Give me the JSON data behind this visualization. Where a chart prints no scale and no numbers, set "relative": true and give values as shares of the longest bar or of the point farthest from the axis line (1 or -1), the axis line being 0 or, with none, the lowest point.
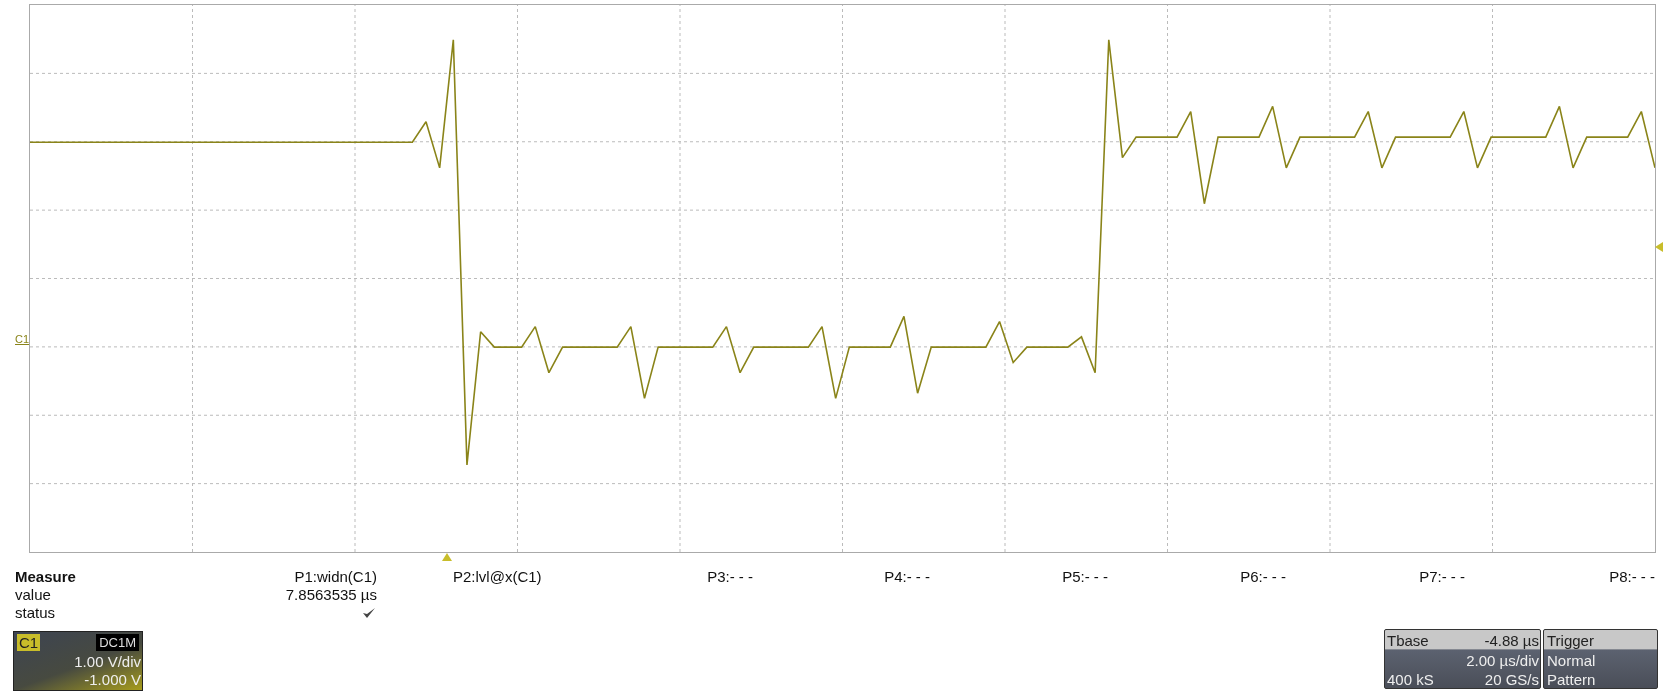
{
  "chart_data": {
    "type": "line",
    "relative": true,
    "grid": true,
    "tick_labels": false,
    "color": "#8a8419",
    "categories": [
      null,
      null,
      null,
      null,
      null,
      null,
      null,
      null,
      null,
      null,
      null,
      null,
      null,
      null,
      null,
      null,
      null,
      null,
      null,
      null,
      null,
      null,
      null,
      null,
      null,
      null,
      null,
      null,
      null,
      null,
      null,
      null,
      null,
      null,
      null,
      null,
      null,
      null,
      null,
      null,
      null,
      null,
      null,
      null,
      null,
      null,
      null,
      null,
      null,
      null,
      null,
      null,
      null,
      null,
      null,
      null,
      null,
      null,
      null,
      null,
      null,
      null,
      null,
      null,
      null,
      null,
      null,
      null,
      null,
      null,
      null,
      null,
      null,
      null,
      null,
      null,
      null,
      null,
      null,
      null,
      null,
      null,
      null,
      null,
      null,
      null,
      null,
      null,
      null,
      null,
      null,
      null,
      null,
      null,
      null,
      null,
      null,
      null,
      null,
      null,
      null,
      null,
      null,
      null,
      null,
      null,
      null,
      null,
      null,
      null,
      null,
      null,
      null,
      null,
      null,
      null,
      null,
      null,
      null,
      null
    ],
    "values": [
      0.8,
      0.8,
      0.8,
      0.8,
      0.8,
      0.8,
      0.8,
      0.8,
      0.8,
      0.8,
      0.8,
      0.8,
      0.8,
      0.8,
      0.8,
      0.8,
      0.8,
      0.8,
      0.8,
      0.8,
      0.8,
      0.8,
      0.8,
      0.8,
      0.8,
      0.8,
      0.8,
      0.8,
      0.8,
      0.84,
      0.75,
      1,
      0.17,
      0.43,
      0.4,
      0.4,
      0.4,
      0.44,
      0.35,
      0.4,
      0.4,
      0.4,
      0.4,
      0.4,
      0.44,
      0.3,
      0.4,
      0.4,
      0.4,
      0.4,
      0.4,
      0.44,
      0.35,
      0.4,
      0.4,
      0.4,
      0.4,
      0.4,
      0.44,
      0.3,
      0.4,
      0.4,
      0.4,
      0.4,
      0.46,
      0.31,
      0.4,
      0.4,
      0.4,
      0.4,
      0.4,
      0.45,
      0.37,
      0.4,
      0.4,
      0.4,
      0.4,
      0.42,
      0.35,
      1,
      0.77,
      0.81,
      0.81,
      0.81,
      0.81,
      0.86,
      0.68,
      0.81,
      0.81,
      0.81,
      0.81,
      0.87,
      0.75,
      0.81,
      0.81,
      0.81,
      0.81,
      0.81,
      0.86,
      0.75,
      0.81,
      0.81,
      0.81,
      0.81,
      0.81,
      0.86,
      0.75,
      0.81,
      0.81,
      0.81,
      0.81,
      0.81,
      0.87,
      0.75,
      0.81,
      0.81,
      0.81,
      0.81,
      0.86,
      0.75
    ],
    "annotations": [
      "C1",
      "Measure",
      "value",
      "status",
      "P1:widn(C1)",
      "7.8563535 µs",
      "P2:lvl@x(C1)",
      "P3:- - -",
      "P4:- - -",
      "P5:- - -",
      "P6:- - -",
      "P7:- - -",
      "P8:- - -",
      "C1",
      "DC1M",
      "1.00 V/div",
      "-1.000 V",
      "Tbase",
      "-4.88 µs",
      "2.00 µs/div",
      "400 kS",
      "20 GS/s",
      "Trigger",
      "Normal",
      "Pattern"
    ]
  }
}
